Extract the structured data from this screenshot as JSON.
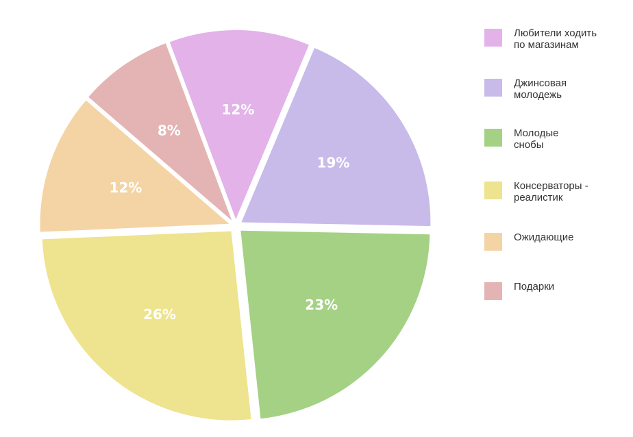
{
  "chart_data": {
    "type": "pie",
    "title": "",
    "slices": [
      {
        "label": "Любители ходить по магазинам",
        "value": 12,
        "value_label": "12%",
        "color": "#E2B2E9"
      },
      {
        "label": "Джинсовая молодежь",
        "value": 19,
        "value_label": "19%",
        "color": "#C8BBEA"
      },
      {
        "label": "Молодые снобы",
        "value": 23,
        "value_label": "23%",
        "color": "#A4D184"
      },
      {
        "label": "Консерваторы - реалистик",
        "value": 26,
        "value_label": "26%",
        "color": "#EEE38E"
      },
      {
        "label": "Ожидающие",
        "value": 12,
        "value_label": "12%",
        "color": "#F4D4A5"
      },
      {
        "label": "Подарки",
        "value": 8,
        "value_label": "8%",
        "color": "#E4B4B4"
      }
    ],
    "legend_position": "right"
  },
  "legend": {
    "items": [
      {
        "lines": [
          "Любители ходить",
          "по магазинам"
        ],
        "color": "#E2B2E9"
      },
      {
        "lines": [
          "Джинсовая",
          "молодежь"
        ],
        "color": "#C8BBEA"
      },
      {
        "lines": [
          "Молодые",
          "снобы"
        ],
        "color": "#A4D184"
      },
      {
        "lines": [
          "Консерваторы -",
          "реалистик"
        ],
        "color": "#EEE38E"
      },
      {
        "lines": [
          "Ожидающие"
        ],
        "color": "#F4D4A5"
      },
      {
        "lines": [
          "Подарки"
        ],
        "color": "#E4B4B4"
      }
    ]
  }
}
